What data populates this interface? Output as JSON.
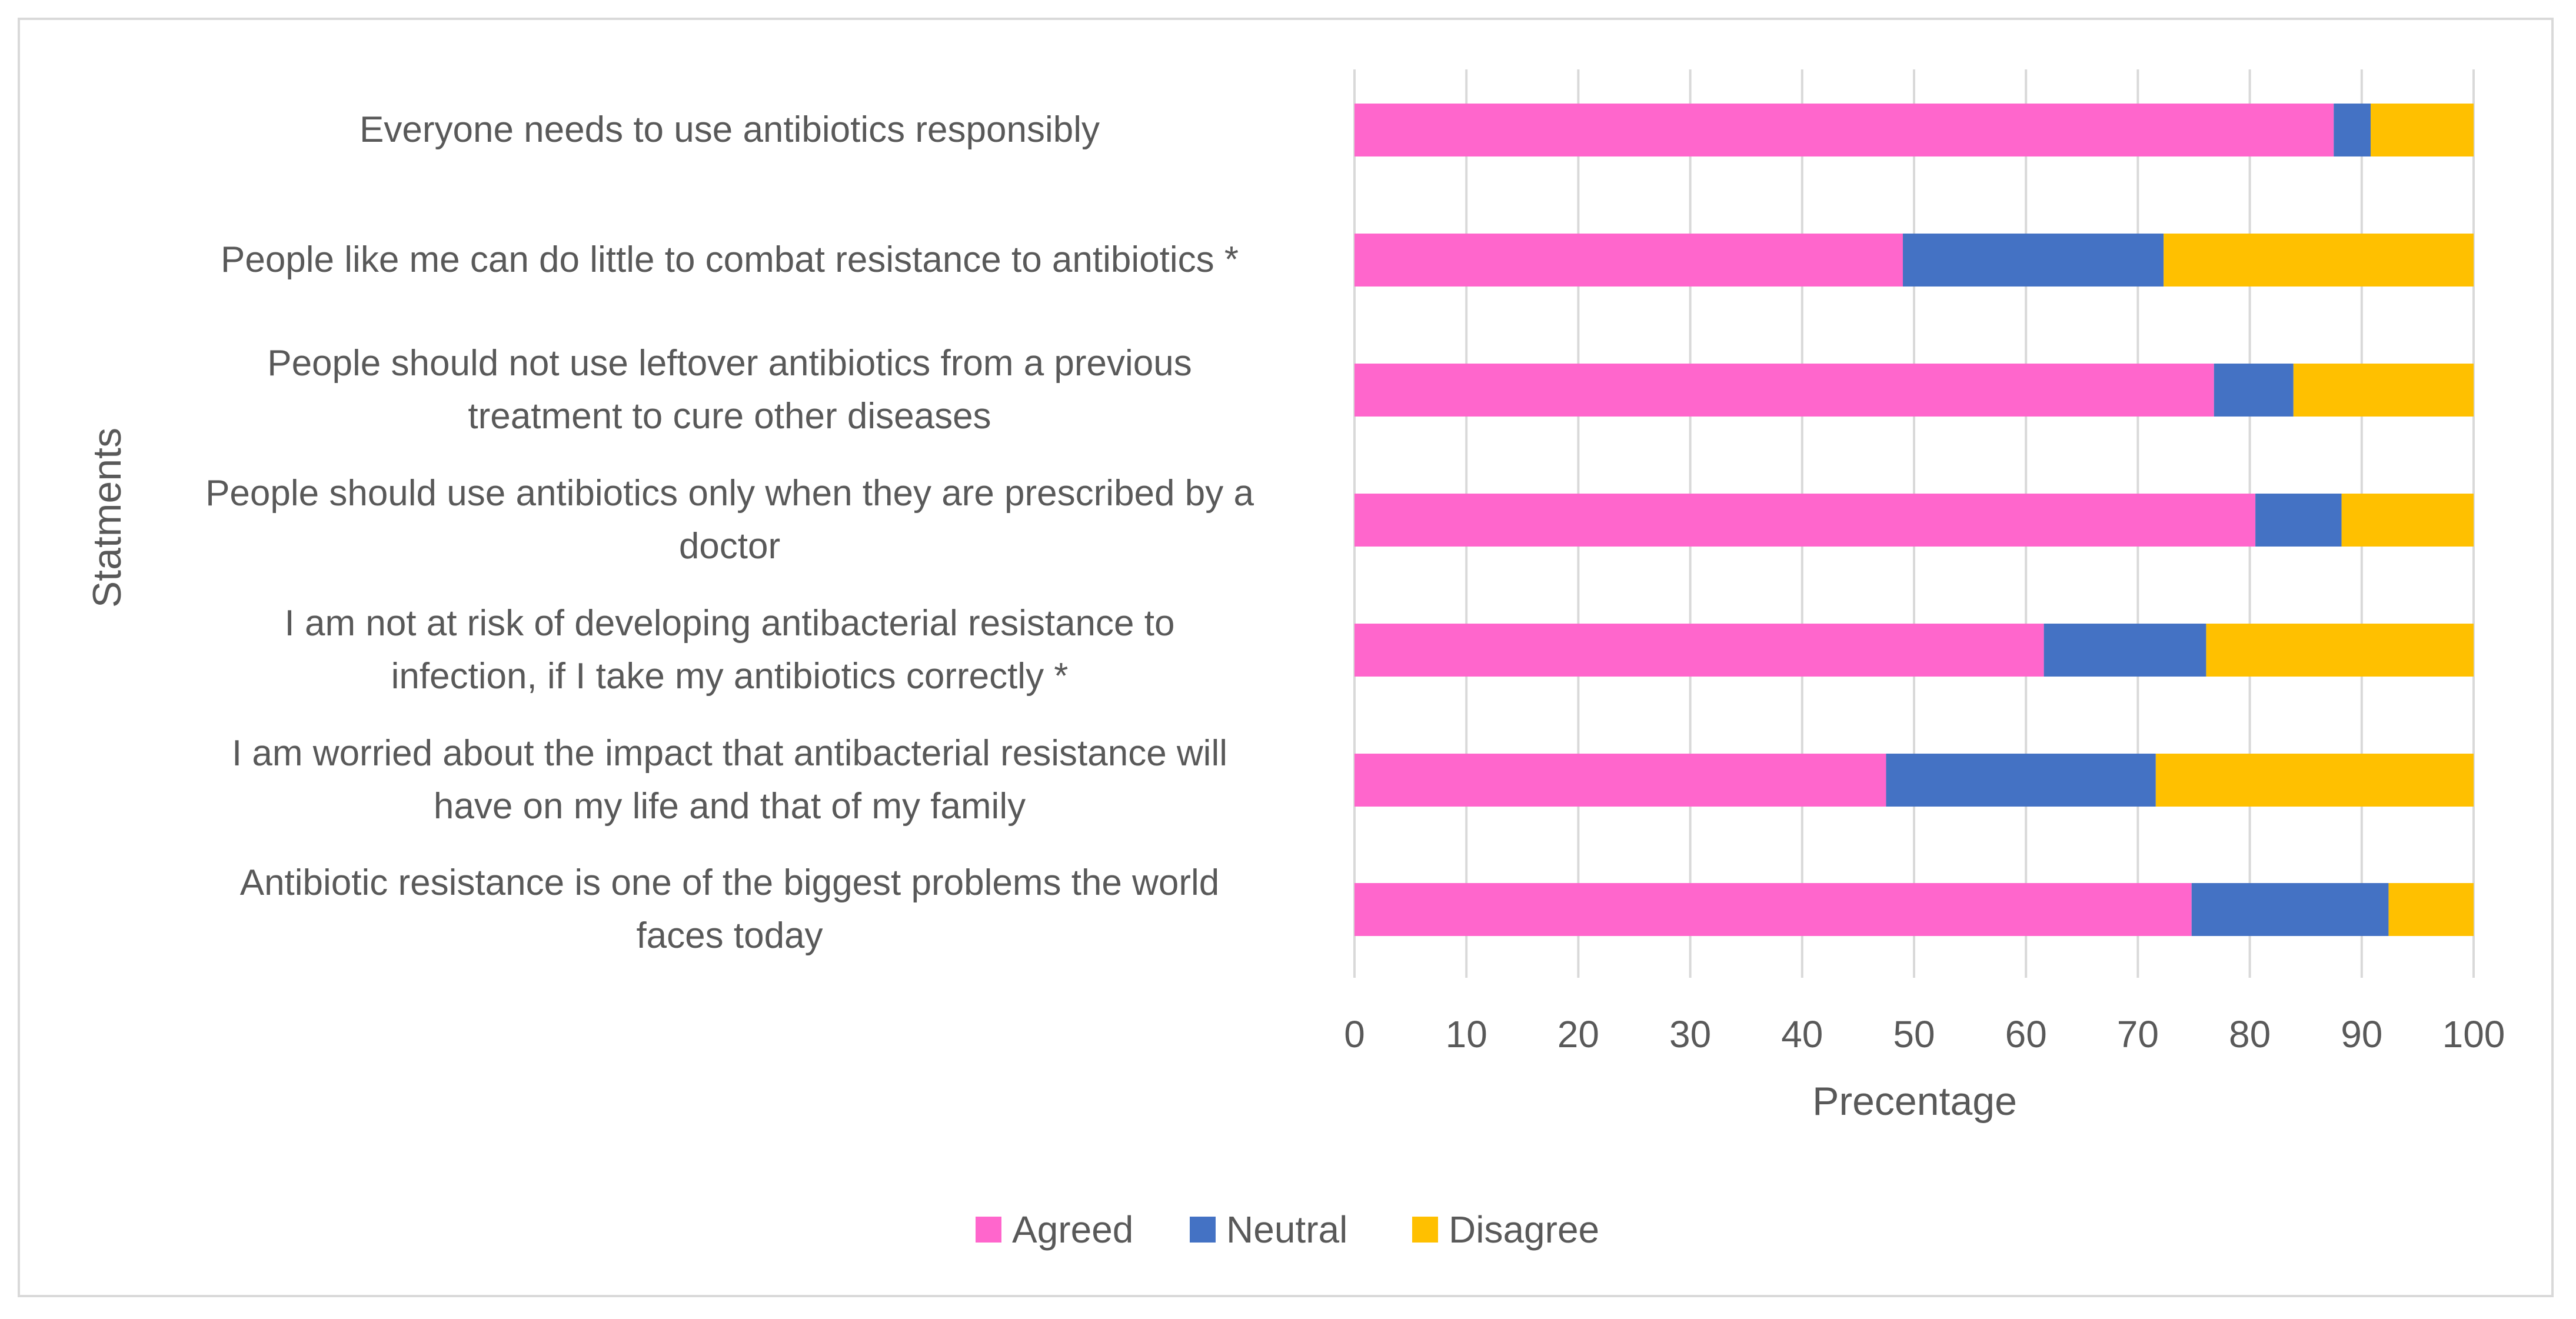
{
  "chart_data": {
    "type": "bar",
    "orientation": "horizontal",
    "stacked": true,
    "xlabel": "Precentage",
    "ylabel": "Statments",
    "xlim": [
      0,
      100
    ],
    "xticks": [
      "0",
      "10",
      "20",
      "30",
      "40",
      "50",
      "60",
      "70",
      "80",
      "90",
      "100"
    ],
    "grid": true,
    "legend_position": "bottom",
    "categories": [
      [
        "Everyone needs to use antibiotics responsibly"
      ],
      [
        "People like me can do little to combat resistance to antibiotics *"
      ],
      [
        "People should not use leftover antibiotics from a previous",
        "treatment to cure other diseases"
      ],
      [
        "People should use antibiotics only when they are prescribed by a",
        "doctor"
      ],
      [
        "I am not at risk of developing antibacterial resistance to",
        "infection, if I take my antibiotics correctly *"
      ],
      [
        "I am worried about the impact that antibacterial resistance will",
        "have on my life and that of my family"
      ],
      [
        "Antibiotic resistance is one of the biggest problems the world",
        "faces today"
      ]
    ],
    "series": [
      {
        "name": "Agreed",
        "color": "#ff66cc",
        "values": [
          87.5,
          49.0,
          76.8,
          80.5,
          61.6,
          47.5,
          74.8
        ]
      },
      {
        "name": "Neutral",
        "color": "#4472c4",
        "values": [
          3.3,
          23.3,
          7.1,
          7.7,
          14.5,
          24.1,
          17.6
        ]
      },
      {
        "name": "Disagree",
        "color": "#ffc000",
        "values": [
          9.2,
          27.7,
          16.1,
          11.8,
          23.9,
          28.4,
          7.6
        ]
      }
    ]
  }
}
